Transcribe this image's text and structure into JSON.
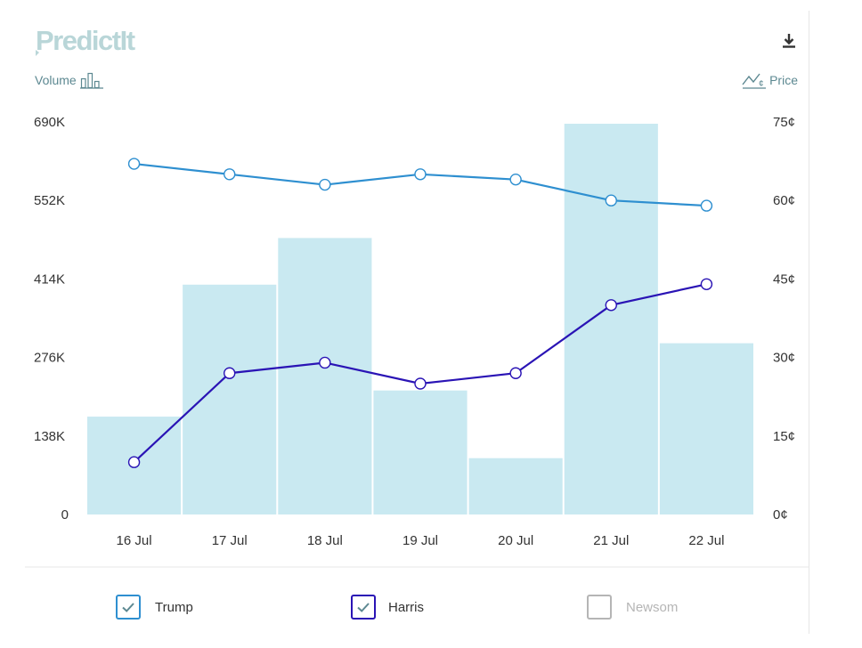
{
  "logo": {
    "text": "PredictIt"
  },
  "toolbar": {
    "download_icon": "download-icon"
  },
  "axes": {
    "left_label": "Volume",
    "right_label": "Price"
  },
  "legend": [
    {
      "label": "Trump",
      "checked": true,
      "color": "#2e8fd0"
    },
    {
      "label": "Harris",
      "checked": true,
      "color": "#2a14b5"
    },
    {
      "label": "Newsom",
      "checked": false,
      "color": "#b5b5b5"
    }
  ],
  "chart_data": {
    "type": "bar+line",
    "categories": [
      "16 Jul",
      "17 Jul",
      "18 Jul",
      "19 Jul",
      "20 Jul",
      "21 Jul",
      "22 Jul"
    ],
    "volume": {
      "values": [
        172000,
        404000,
        486000,
        218000,
        99000,
        702000,
        301000
      ],
      "color": "#c9e9f1",
      "yticks": [
        "0",
        "138K",
        "276K",
        "414K",
        "552K",
        "690K"
      ],
      "ylim": [
        0,
        690000
      ]
    },
    "price": {
      "yticks": [
        "0¢",
        "15¢",
        "30¢",
        "45¢",
        "60¢",
        "75¢"
      ],
      "ylim": [
        0,
        75
      ]
    },
    "series": [
      {
        "name": "Trump",
        "color": "#2e8fd0",
        "values": [
          67,
          65,
          63,
          65,
          64,
          60,
          59
        ]
      },
      {
        "name": "Harris",
        "color": "#2a14b5",
        "values": [
          10,
          27,
          29,
          25,
          27,
          40,
          44
        ]
      }
    ]
  }
}
